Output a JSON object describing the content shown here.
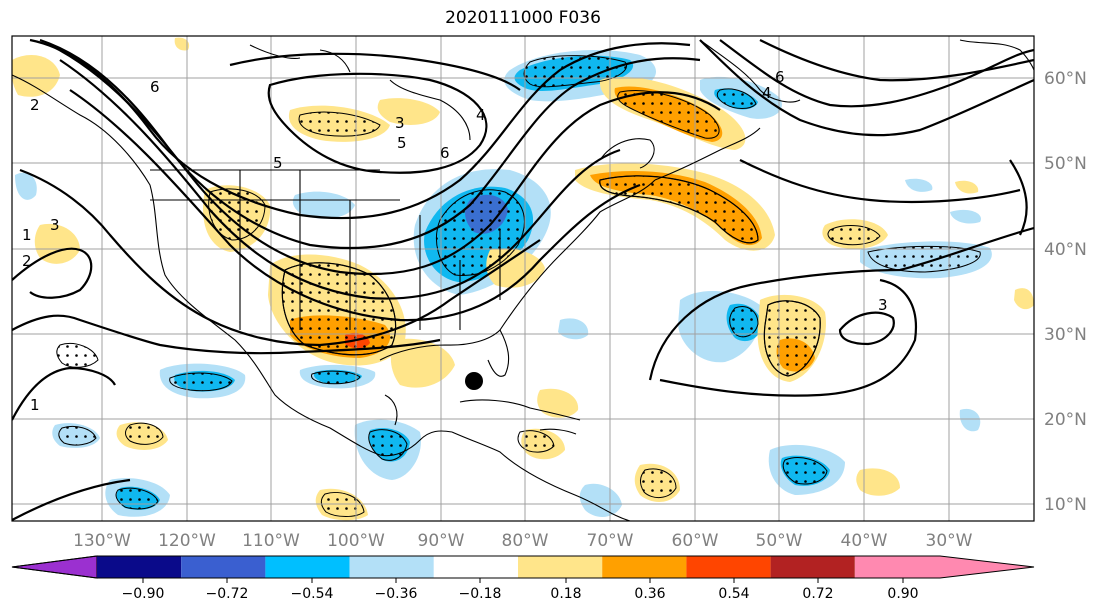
{
  "title": "2020111000 F036",
  "map": {
    "lon_labels": [
      "130°W",
      "120°W",
      "110°W",
      "100°W",
      "90°W",
      "80°W",
      "70°W",
      "60°W",
      "50°W",
      "40°W",
      "30°W"
    ],
    "lat_labels": [
      "60°N",
      "50°N",
      "40°N",
      "30°N",
      "20°N",
      "10°N"
    ],
    "contour_labels": [
      "6",
      "5",
      "4",
      "6",
      "5",
      "3",
      "2",
      "1",
      "3",
      "1",
      "4",
      "2",
      "3",
      "6"
    ],
    "colors": {
      "shade_neg_strong": "#3a6fd0",
      "shade_neg_mid": "#10b8f0",
      "shade_neg_weak": "#b3e0f7",
      "shade_pos_weak": "#ffe58a",
      "shade_pos_mid": "#ffa000",
      "shade_pos_strong": "#ff4500"
    }
  },
  "colorbar": {
    "tick_labels": [
      "−0.90",
      "−0.72",
      "−0.54",
      "−0.36",
      "−0.18",
      "0.18",
      "0.36",
      "0.54",
      "0.72",
      "0.90"
    ],
    "colors": [
      "#9b30d0",
      "#0a0a8a",
      "#3a5fd0",
      "#00bfff",
      "#b3e0f7",
      "#ffffff",
      "#ffe58a",
      "#ffa000",
      "#ff4500",
      "#b22222",
      "#ff89b0"
    ]
  }
}
